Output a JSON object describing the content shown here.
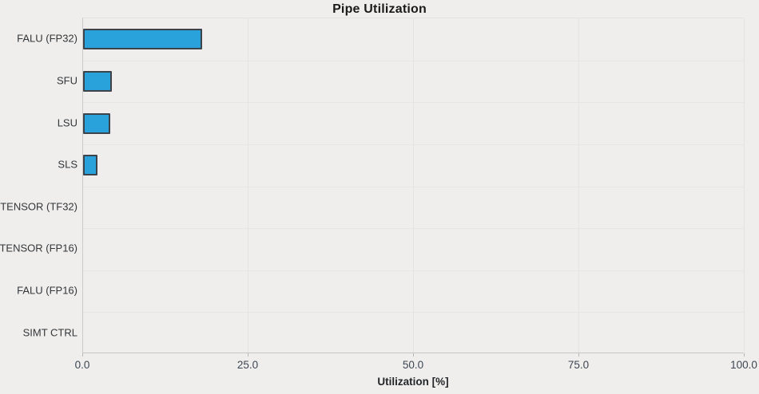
{
  "title": "Pipe Utilization",
  "colors": {
    "background": "#efeeec",
    "bar_fill": "#29a2db",
    "bar_border": "#3c434b",
    "gridline": "#e4e3e1",
    "axis_line": "#c6c5c3",
    "tick_text": "#3d4653",
    "category_text": "#33363a",
    "title_text": "#1b1b1b"
  },
  "chart_data": {
    "type": "bar",
    "orientation": "horizontal",
    "title": "Pipe Utilization",
    "categories": [
      "FALU (FP32)",
      "SFU",
      "LSU",
      "SLS",
      "TENSOR (TF32)",
      "TENSOR (FP16)",
      "FALU (FP16)",
      "SIMT CTRL"
    ],
    "values": [
      18.0,
      4.4,
      4.1,
      2.2,
      0.0,
      0.0,
      0.0,
      0.0
    ],
    "xlabel": "Utilization [%]",
    "ylabel": "",
    "xlim": [
      0,
      100
    ],
    "xticks": [
      0,
      25,
      50,
      75,
      100
    ],
    "xtick_labels": [
      "0.0",
      "25.0",
      "50.0",
      "75.0",
      "100.0"
    ],
    "grid": true,
    "legend": null
  }
}
